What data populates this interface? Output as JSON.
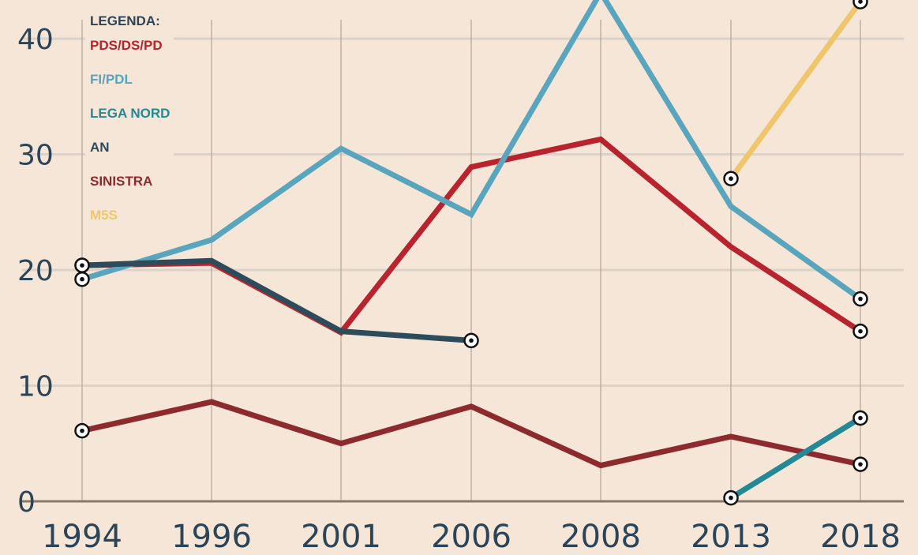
{
  "chart_data": {
    "type": "line",
    "x": [
      "1994",
      "1996",
      "2001",
      "2006",
      "2008",
      "2013",
      "2018"
    ],
    "ylim": [
      0,
      43
    ],
    "yticks": [
      0,
      10,
      20,
      30,
      40
    ],
    "grid": true,
    "legend_title": "LEGENDA:",
    "legend_position": "top-left",
    "series": [
      {
        "name": "PDS/DS/PD",
        "color": "#b8232d",
        "values": [
          20.4,
          20.6,
          14.6,
          28.9,
          31.3,
          22.0,
          14.7
        ],
        "markers": [
          true,
          false,
          false,
          false,
          false,
          false,
          true
        ]
      },
      {
        "name": "FI/PDL",
        "color": "#58a5bd",
        "values": [
          19.2,
          22.6,
          30.5,
          24.8,
          44.0,
          25.5,
          17.5
        ],
        "markers": [
          true,
          false,
          false,
          false,
          false,
          false,
          true
        ]
      },
      {
        "name": "LEGA NORD",
        "color": "#248895",
        "values": [
          null,
          null,
          null,
          null,
          null,
          0.3,
          7.2
        ],
        "markers": [
          false,
          false,
          false,
          false,
          false,
          true,
          true
        ]
      },
      {
        "name": "AN",
        "color": "#2c4c5b",
        "values": [
          20.4,
          20.8,
          14.7,
          13.9,
          null,
          null,
          null
        ],
        "markers": [
          true,
          false,
          false,
          true,
          false,
          false,
          false
        ]
      },
      {
        "name": "SINISTRA",
        "color": "#8d2a2e",
        "values": [
          6.1,
          8.6,
          5.0,
          8.2,
          3.1,
          5.6,
          3.2
        ],
        "markers": [
          true,
          false,
          false,
          false,
          false,
          false,
          true
        ]
      },
      {
        "name": "M5S",
        "color": "#f0c66d",
        "values": [
          null,
          null,
          null,
          null,
          null,
          27.9,
          43.2
        ],
        "markers": [
          false,
          false,
          false,
          false,
          false,
          true,
          true
        ]
      }
    ]
  }
}
